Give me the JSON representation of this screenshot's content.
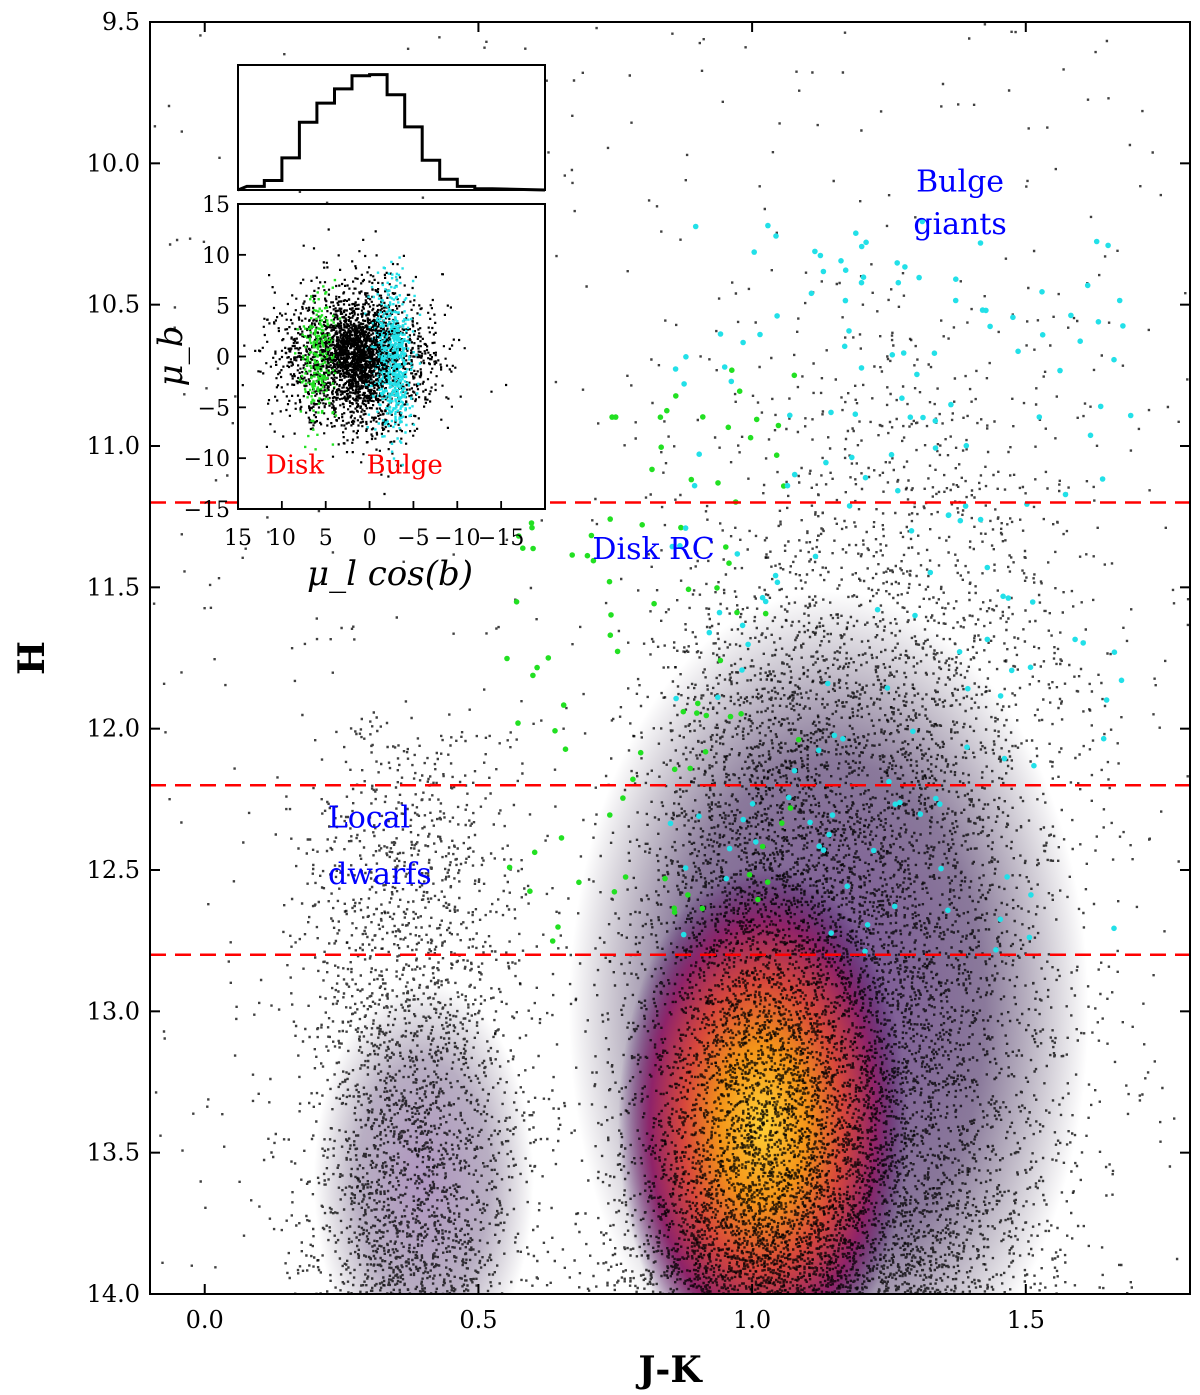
{
  "chart_data": [
    {
      "type": "scatter",
      "title": "",
      "xlabel": "J-K",
      "ylabel": "H",
      "xlim": [
        -0.1,
        1.8
      ],
      "ylim": [
        14.0,
        9.5
      ],
      "y_inverted": true,
      "xticks": [
        "0.0",
        "0.5",
        "1.0",
        "1.5"
      ],
      "yticks": [
        "9.5",
        "10.0",
        "10.5",
        "11.0",
        "11.5",
        "12.0",
        "12.5",
        "13.0",
        "13.5",
        "14.0"
      ],
      "density_colormap": "inferno",
      "annotations": [
        {
          "text": "Bulge",
          "x": 1.38,
          "y": 10.1,
          "color": "#0000ff"
        },
        {
          "text": "giants",
          "x": 1.38,
          "y": 10.25,
          "color": "#0000ff"
        },
        {
          "text": "Disk RC",
          "x": 0.82,
          "y": 11.4,
          "color": "#0000ff"
        },
        {
          "text": "Local",
          "x": 0.3,
          "y": 12.35,
          "color": "#0000ff"
        },
        {
          "text": "dwarfs",
          "x": 0.32,
          "y": 12.55,
          "color": "#0000ff"
        }
      ],
      "reference_lines": [
        {
          "orientation": "horizontal",
          "y": 11.2,
          "style": "dashed",
          "color": "#ff0000"
        },
        {
          "orientation": "horizontal",
          "y": 12.2,
          "style": "dashed",
          "color": "#ff0000"
        },
        {
          "orientation": "horizontal",
          "y": 12.8,
          "style": "dashed",
          "color": "#ff0000"
        }
      ],
      "populations": [
        {
          "component": "Local dwarfs",
          "jk_center": 0.38,
          "h_range": [
            12.0,
            14.0
          ],
          "color": "#000000"
        },
        {
          "component": "Disk RC",
          "jk_center": 0.82,
          "h_range": [
            11.2,
            14.0
          ],
          "color": "#000000"
        },
        {
          "component": "Bulge RC density peak",
          "jk_center": 1.02,
          "h_center": 13.4,
          "color": "#f8a012"
        },
        {
          "component": "Bulge giants",
          "jk_center": 1.25,
          "h_range": [
            10.3,
            14.0
          ],
          "color": "#000000"
        },
        {
          "component": "disk-selected stars",
          "jk_range": [
            0.55,
            1.1
          ],
          "h_range": [
            10.7,
            12.8
          ],
          "color": "#22e022"
        },
        {
          "component": "bulge-selected stars",
          "jk_range": [
            0.85,
            1.7
          ],
          "h_range": [
            10.2,
            12.8
          ],
          "color": "#22e0e8"
        }
      ]
    },
    {
      "type": "area",
      "title": "",
      "xlabel": "",
      "ylabel": "",
      "xlim": [
        15,
        -20
      ],
      "histogram_x": [
        13,
        11,
        9,
        7,
        5,
        3,
        1,
        -1,
        -3,
        -5,
        -7,
        -9,
        -11,
        -13
      ],
      "histogram_y": [
        0.03,
        0.08,
        0.27,
        0.57,
        0.73,
        0.85,
        0.96,
        0.97,
        0.8,
        0.53,
        0.25,
        0.09,
        0.03,
        0.01
      ]
    },
    {
      "type": "scatter",
      "title": "",
      "xlabel": "μ_l cos(b)",
      "ylabel": "μ_b",
      "xlim": [
        15,
        -20
      ],
      "ylim": [
        -15,
        15
      ],
      "xticks": [
        "15",
        "10",
        "5",
        "0",
        "−5",
        "−10",
        "−15"
      ],
      "yticks": [
        "15",
        "10",
        "5",
        "0",
        "−5",
        "−10",
        "−15"
      ],
      "group_labels": [
        {
          "text": "Disk",
          "x": 8.5,
          "y": -11.5,
          "color": "#ff0000"
        },
        {
          "text": "Bulge",
          "x": -4,
          "y": -11.5,
          "color": "#ff0000"
        }
      ],
      "groups": [
        {
          "name": "Disk",
          "mu_l_center": 6,
          "mu_b_center": 0,
          "color": "#22e022"
        },
        {
          "name": "Bulge",
          "mu_l_center": -2.5,
          "mu_b_center": 0,
          "color": "#22e0e8"
        },
        {
          "name": "all",
          "mu_l_center": 1.5,
          "mu_b_center": 0,
          "color": "#000000"
        }
      ]
    }
  ]
}
